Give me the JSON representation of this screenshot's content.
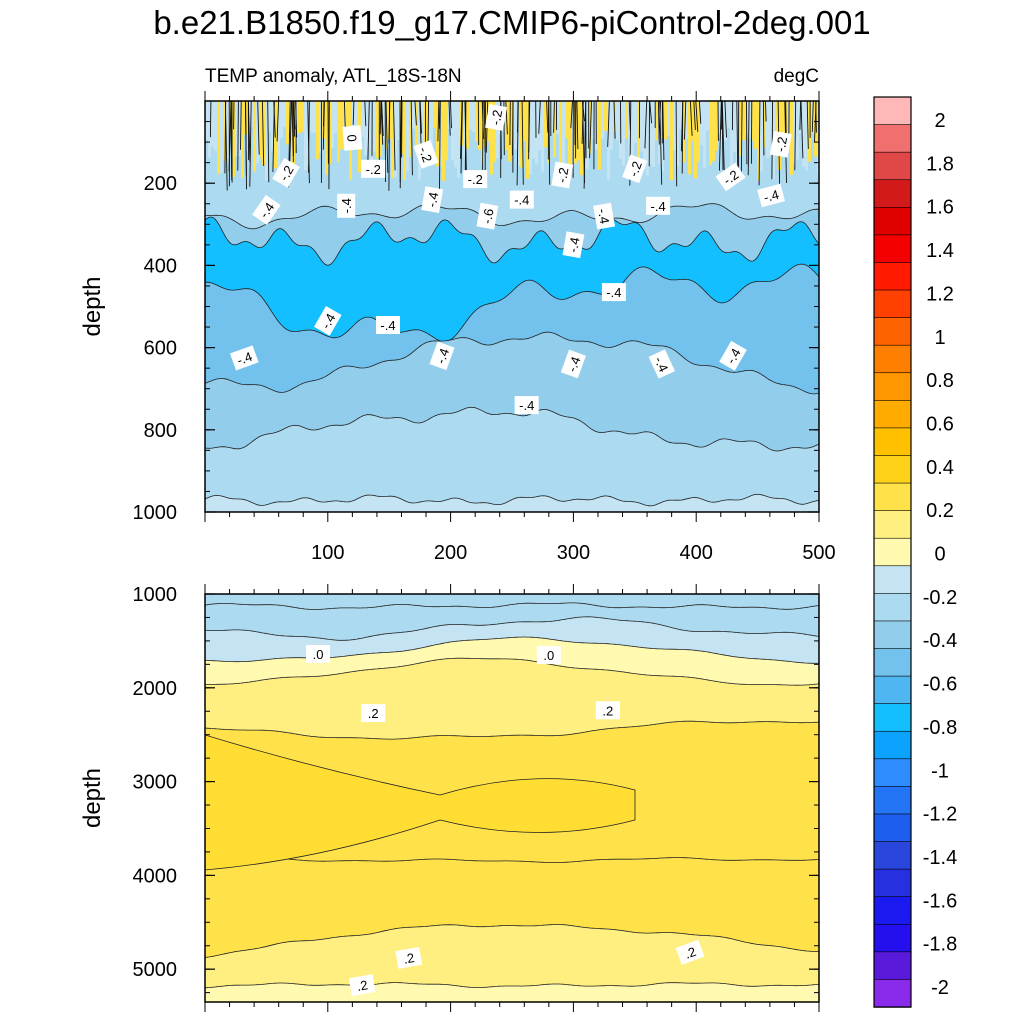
{
  "figure": {
    "title": "b.e21.B1850.f19_g17.CMIP6-piControl-2deg.001",
    "subtitle_left": "TEMP anomaly, ATL_18S-18N",
    "subtitle_right": "degC"
  },
  "chart_data": [
    {
      "type": "heatmap",
      "panel": "upper",
      "title": "",
      "xlabel": "",
      "ylabel": "depth",
      "xlim": [
        0,
        500
      ],
      "ylim": [
        1000,
        0
      ],
      "x_ticks": [
        100,
        200,
        300,
        400,
        500
      ],
      "y_ticks": [
        200,
        400,
        600,
        800,
        1000
      ],
      "contour_labels": [
        {
          "text": "0",
          "x": 120,
          "y": 90,
          "angle": 85
        },
        {
          "text": "-.2",
          "x": 237,
          "y": 40,
          "angle": -80
        },
        {
          "text": "-.2",
          "x": 180,
          "y": 130,
          "angle": 70
        },
        {
          "text": "-.2",
          "x": 66,
          "y": 175,
          "angle": -60
        },
        {
          "text": "-.2",
          "x": 137,
          "y": 165,
          "angle": 0
        },
        {
          "text": "-.2",
          "x": 220,
          "y": 190,
          "angle": 0
        },
        {
          "text": "-.2",
          "x": 291,
          "y": 180,
          "angle": -80
        },
        {
          "text": "-.2",
          "x": 350,
          "y": 165,
          "angle": -70
        },
        {
          "text": "-.2",
          "x": 428,
          "y": 185,
          "angle": -35
        },
        {
          "text": "-.2",
          "x": 469,
          "y": 105,
          "angle": -80
        },
        {
          "text": "-.4",
          "x": 50,
          "y": 265,
          "angle": -55
        },
        {
          "text": "-.4",
          "x": 115,
          "y": 255,
          "angle": -90
        },
        {
          "text": "-.4",
          "x": 185,
          "y": 240,
          "angle": -80
        },
        {
          "text": "-.6",
          "x": 230,
          "y": 280,
          "angle": -80
        },
        {
          "text": "-.4",
          "x": 258,
          "y": 240,
          "angle": 0
        },
        {
          "text": "-.4",
          "x": 300,
          "y": 350,
          "angle": -80
        },
        {
          "text": "-.4",
          "x": 325,
          "y": 280,
          "angle": 80
        },
        {
          "text": "-.4",
          "x": 369,
          "y": 255,
          "angle": 0
        },
        {
          "text": "-.4",
          "x": 461,
          "y": 230,
          "angle": -15
        },
        {
          "text": "-.4",
          "x": 333,
          "y": 465,
          "angle": 0
        },
        {
          "text": "-.4",
          "x": 100,
          "y": 535,
          "angle": -60
        },
        {
          "text": "-.4",
          "x": 149,
          "y": 545,
          "angle": 0
        },
        {
          "text": "-.4",
          "x": 193,
          "y": 620,
          "angle": -70
        },
        {
          "text": "-.4",
          "x": 32,
          "y": 625,
          "angle": -20
        },
        {
          "text": "-.4",
          "x": 300,
          "y": 640,
          "angle": -70
        },
        {
          "text": "-.4",
          "x": 372,
          "y": 640,
          "angle": 65
        },
        {
          "text": "-.4",
          "x": 430,
          "y": 620,
          "angle": -60
        },
        {
          "text": "-.4",
          "x": 262,
          "y": 740,
          "angle": 0
        }
      ]
    },
    {
      "type": "heatmap",
      "panel": "lower",
      "title": "",
      "xlabel": "",
      "ylabel": "depth",
      "xlim": [
        0,
        500
      ],
      "ylim": [
        5350,
        1000
      ],
      "y_ticks": [
        1000,
        2000,
        3000,
        4000,
        5000
      ],
      "contour_labels": [
        {
          "text": ".0",
          "x": 92,
          "y": 1640,
          "angle": 0
        },
        {
          "text": ".0",
          "x": 280,
          "y": 1650,
          "angle": 0
        },
        {
          "text": ".2",
          "x": 137,
          "y": 2270,
          "angle": 0
        },
        {
          "text": ".2",
          "x": 328,
          "y": 2240,
          "angle": 0
        },
        {
          "text": ".2",
          "x": 395,
          "y": 4820,
          "angle": -20
        },
        {
          "text": ".2",
          "x": 166,
          "y": 4880,
          "angle": -10
        },
        {
          "text": ".2",
          "x": 128,
          "y": 5170,
          "angle": -10
        }
      ]
    }
  ],
  "colorbar": {
    "labels": [
      "2",
      "1.8",
      "1.6",
      "1.4",
      "1.2",
      "1",
      "0.8",
      "0.6",
      "0.4",
      "0.2",
      "0",
      "-0.2",
      "-0.4",
      "-0.6",
      "-0.8",
      "-1",
      "-1.2",
      "-1.4",
      "-1.6",
      "-1.8",
      "-2"
    ],
    "colors": [
      "#FFB8B8",
      "#F07070",
      "#E04848",
      "#D31A1A",
      "#E00000",
      "#F40000",
      "#FF1A00",
      "#FF4000",
      "#FF6200",
      "#FF7F00",
      "#FF9700",
      "#FFAB00",
      "#FFC000",
      "#FFD21A",
      "#FFE24A",
      "#FFEE80",
      "#FFFAB0",
      "#C4E4F4",
      "#ACDAF0",
      "#92CEEC",
      "#73C2EE",
      "#4EB6F0",
      "#14BFFF",
      "#0CA2FF",
      "#2E8CFF",
      "#2375F5",
      "#1E5EEE",
      "#2A46DC",
      "#2630E0",
      "#1A1AF0",
      "#2410EE",
      "#5A1ADC",
      "#8A2AEA"
    ],
    "ticks_index": [
      1,
      3,
      5,
      7,
      9,
      11,
      13,
      15,
      17,
      19,
      21,
      23,
      25,
      27,
      29,
      31,
      33,
      35,
      37,
      39,
      41
    ]
  }
}
